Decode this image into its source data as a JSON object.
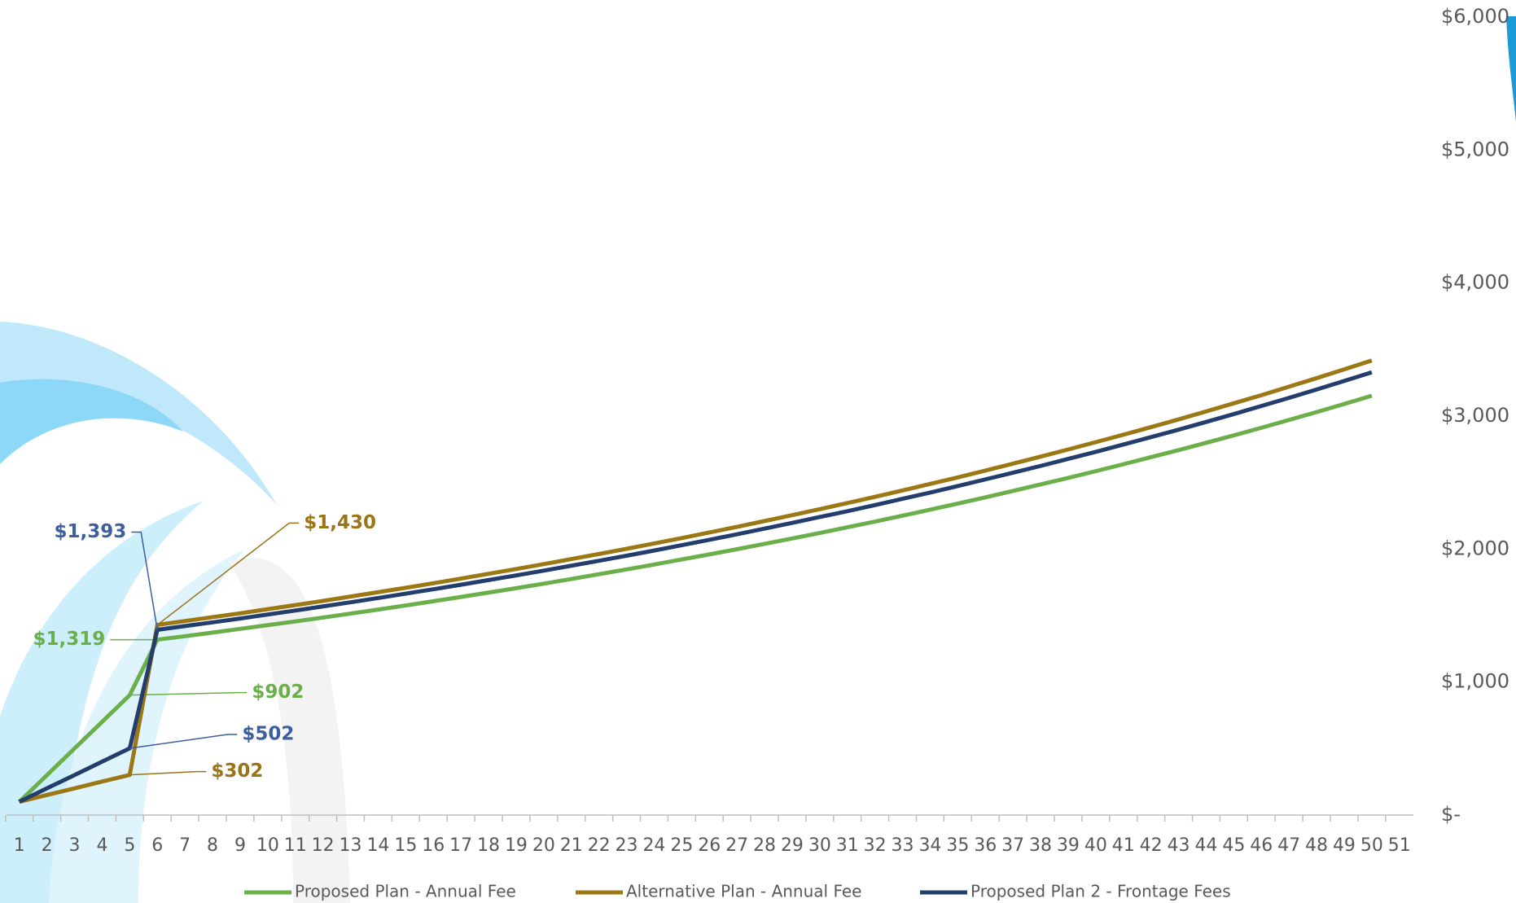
{
  "chart_data": {
    "type": "line",
    "categories": [
      1,
      2,
      3,
      4,
      5,
      6,
      7,
      8,
      9,
      10,
      11,
      12,
      13,
      14,
      15,
      16,
      17,
      18,
      19,
      20,
      21,
      22,
      23,
      24,
      25,
      26,
      27,
      28,
      29,
      30,
      31,
      32,
      33,
      34,
      35,
      36,
      37,
      38,
      39,
      40,
      41,
      42,
      43,
      44,
      45,
      46,
      47,
      48,
      49,
      50,
      51
    ],
    "series": [
      {
        "name": "Proposed Plan - Annual Fee",
        "color": "#6aaf4a",
        "label_color": "#6aaf4a",
        "values": [
          100,
          300,
          501,
          701,
          902,
          1319,
          1345,
          1372,
          1400,
          1428,
          1456,
          1485,
          1515,
          1545,
          1576,
          1608,
          1640,
          1673,
          1706,
          1740,
          1775,
          1811,
          1847,
          1884,
          1922,
          1960,
          1999,
          2039,
          2080,
          2121,
          2164,
          2207,
          2251,
          2296,
          2342,
          2389,
          2437,
          2486,
          2535,
          2586,
          2638,
          2691,
          2744,
          2799,
          2855,
          2912,
          2971,
          3030,
          3091,
          3153,
          null
        ],
        "value_labels": [
          null,
          null,
          null,
          null,
          "$902",
          "$1,319",
          null,
          null,
          null,
          null,
          null,
          null,
          null,
          null,
          null,
          null,
          null,
          null,
          null,
          null,
          null,
          null,
          null,
          null,
          null,
          null,
          null,
          null,
          null,
          null,
          null,
          null,
          null,
          null,
          null,
          null,
          null,
          null,
          null,
          null,
          null,
          null,
          null,
          null,
          null,
          null,
          null,
          null,
          null,
          null,
          null
        ]
      },
      {
        "name": "Alternative Plan - Annual Fee",
        "color": "#9c7814",
        "label_color": "#9a7417",
        "values": [
          100,
          151,
          201,
          252,
          302,
          1430,
          1459,
          1488,
          1517,
          1548,
          1579,
          1610,
          1643,
          1676,
          1709,
          1743,
          1778,
          1814,
          1850,
          1887,
          1925,
          1963,
          2002,
          2042,
          2083,
          2125,
          2167,
          2211,
          2255,
          2300,
          2346,
          2393,
          2441,
          2490,
          2539,
          2590,
          2642,
          2695,
          2749,
          2804,
          2860,
          2917,
          2975,
          3035,
          3096,
          3157,
          3221,
          3285,
          3351,
          3418,
          null
        ],
        "value_labels": [
          null,
          null,
          null,
          null,
          "$302",
          "$1,430",
          null,
          null,
          null,
          null,
          null,
          null,
          null,
          null,
          null,
          null,
          null,
          null,
          null,
          null,
          null,
          null,
          null,
          null,
          null,
          null,
          null,
          null,
          null,
          null,
          null,
          null,
          null,
          null,
          null,
          null,
          null,
          null,
          null,
          null,
          null,
          null,
          null,
          null,
          null,
          null,
          null,
          null,
          null,
          null,
          null
        ]
      },
      {
        "name": "Proposed Plan 2 - Frontage Fees",
        "color": "#233d6c",
        "label_color": "#3d5f9e",
        "values": [
          100,
          201,
          301,
          402,
          502,
          1393,
          1421,
          1449,
          1478,
          1508,
          1538,
          1569,
          1600,
          1632,
          1665,
          1698,
          1732,
          1767,
          1802,
          1838,
          1875,
          1912,
          1950,
          1989,
          2029,
          2070,
          2111,
          2154,
          2197,
          2241,
          2285,
          2331,
          2378,
          2425,
          2474,
          2524,
          2574,
          2625,
          2678,
          2731,
          2786,
          2842,
          2898,
          2956,
          3015,
          3076,
          3137,
          3200,
          3264,
          3329,
          null
        ],
        "value_labels": [
          null,
          null,
          null,
          null,
          "$502",
          "$1,393",
          null,
          null,
          null,
          null,
          null,
          null,
          null,
          null,
          null,
          null,
          null,
          null,
          null,
          null,
          null,
          null,
          null,
          null,
          null,
          null,
          null,
          null,
          null,
          null,
          null,
          null,
          null,
          null,
          null,
          null,
          null,
          null,
          null,
          null,
          null,
          null,
          null,
          null,
          null,
          null,
          null,
          null,
          null,
          null,
          null
        ]
      }
    ],
    "ylim": [
      0,
      6000
    ],
    "yticks": [
      {
        "value": 0,
        "label": "$-"
      },
      {
        "value": 1000,
        "label": "$1,000"
      },
      {
        "value": 2000,
        "label": "$2,000"
      },
      {
        "value": 3000,
        "label": "$3,000"
      },
      {
        "value": 4000,
        "label": "$4,000"
      },
      {
        "value": 5000,
        "label": "$5,000"
      },
      {
        "value": 6000,
        "label": "$6,000"
      }
    ],
    "grid": false,
    "legend": "bottom"
  }
}
